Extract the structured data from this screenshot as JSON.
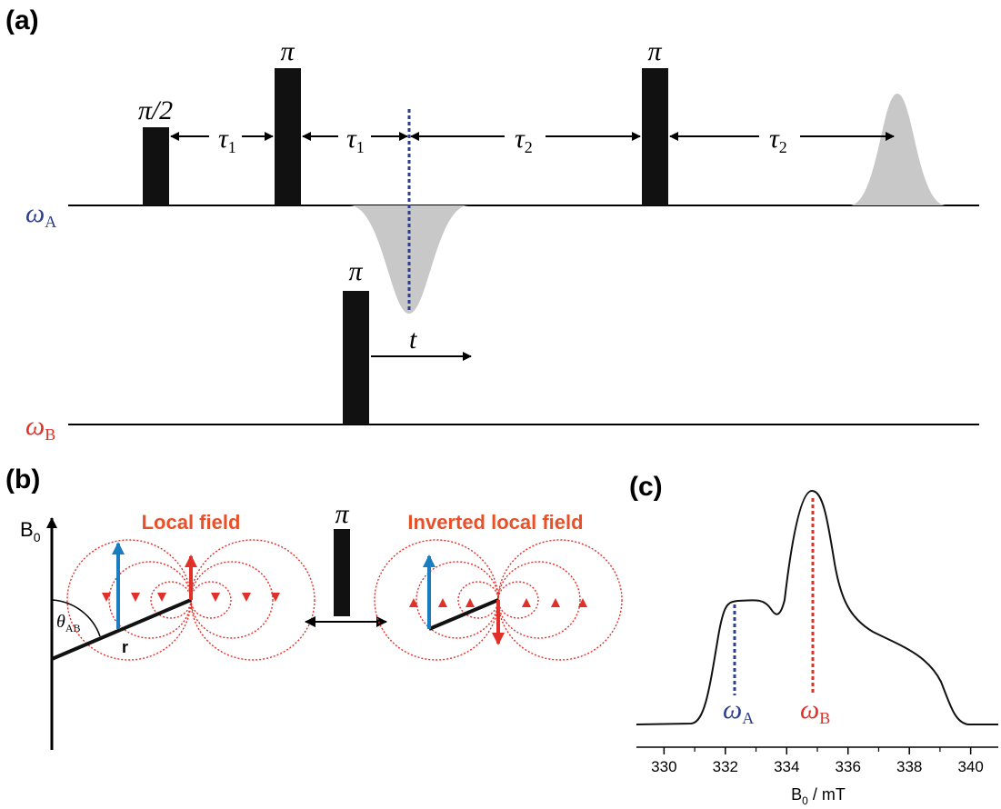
{
  "panel_a": {
    "label": "(a)",
    "channel_a": {
      "symbol": "ω",
      "subscript": "A"
    },
    "channel_b": {
      "symbol": "ω",
      "subscript": "B"
    },
    "pulse_a1": "π/2",
    "pulse_a2": "π",
    "pulse_a3": "π",
    "pulse_b": "π",
    "delays": [
      {
        "symbol": "τ",
        "subscript": "1"
      },
      {
        "symbol": "τ",
        "subscript": "1"
      },
      {
        "symbol": "τ",
        "subscript": "2"
      },
      {
        "symbol": "τ",
        "subscript": "2"
      }
    ],
    "time_label": "t"
  },
  "panel_b": {
    "label": "(b)",
    "field_axis": {
      "symbol": "B",
      "subscript": "0"
    },
    "angle": {
      "symbol": "θ",
      "subscript": "AB"
    },
    "distance": "r",
    "left_title": "Local field",
    "right_title": "Inverted local field",
    "pulse": "π"
  },
  "panel_c": {
    "label": "(c)",
    "marker_a": {
      "symbol": "ω",
      "subscript": "A"
    },
    "marker_b": {
      "symbol": "ω",
      "subscript": "B"
    },
    "xlabel": {
      "symbol": "B",
      "subscript": "0",
      "unit": " / mT"
    },
    "xlim": [
      329.1,
      340.9
    ],
    "xticks": [
      330,
      332,
      334,
      336,
      338,
      340
    ],
    "xminor": [
      331,
      333,
      335,
      337,
      339
    ]
  }
}
